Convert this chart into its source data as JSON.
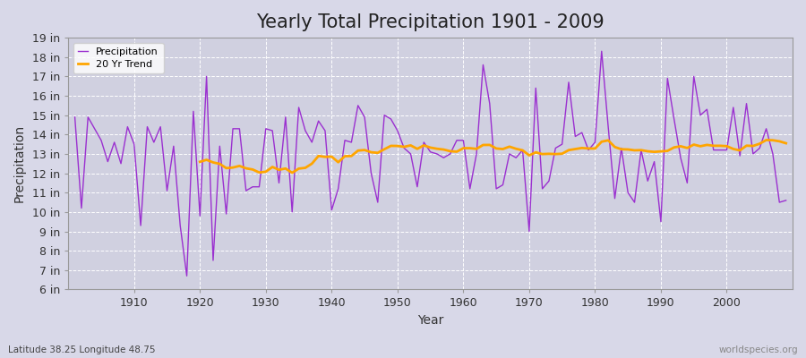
{
  "title": "Yearly Total Precipitation 1901 - 2009",
  "xlabel": "Year",
  "ylabel": "Precipitation",
  "subtitle": "Latitude 38.25 Longitude 48.75",
  "watermark": "worldspecies.org",
  "years": [
    1901,
    1902,
    1903,
    1904,
    1905,
    1906,
    1907,
    1908,
    1909,
    1910,
    1911,
    1912,
    1913,
    1914,
    1915,
    1916,
    1917,
    1918,
    1919,
    1920,
    1921,
    1922,
    1923,
    1924,
    1925,
    1926,
    1927,
    1928,
    1929,
    1930,
    1931,
    1932,
    1933,
    1934,
    1935,
    1936,
    1937,
    1938,
    1939,
    1940,
    1941,
    1942,
    1943,
    1944,
    1945,
    1946,
    1947,
    1948,
    1949,
    1950,
    1951,
    1952,
    1953,
    1954,
    1955,
    1956,
    1957,
    1958,
    1959,
    1960,
    1961,
    1962,
    1963,
    1964,
    1965,
    1966,
    1967,
    1968,
    1969,
    1970,
    1971,
    1972,
    1973,
    1974,
    1975,
    1976,
    1977,
    1978,
    1979,
    1980,
    1981,
    1982,
    1983,
    1984,
    1985,
    1986,
    1987,
    1988,
    1989,
    1990,
    1991,
    1992,
    1993,
    1994,
    1995,
    1996,
    1997,
    1998,
    1999,
    2000,
    2001,
    2002,
    2003,
    2004,
    2005,
    2006,
    2007,
    2008,
    2009
  ],
  "precipitation": [
    14.9,
    10.2,
    14.9,
    14.3,
    13.7,
    12.6,
    13.6,
    12.5,
    14.4,
    13.5,
    9.3,
    14.4,
    13.6,
    14.4,
    11.1,
    13.4,
    9.3,
    6.7,
    15.2,
    9.8,
    17.0,
    7.5,
    13.4,
    9.9,
    14.3,
    14.3,
    11.1,
    11.3,
    11.3,
    14.3,
    14.2,
    11.5,
    14.9,
    10.0,
    15.4,
    14.2,
    13.6,
    14.7,
    14.2,
    10.1,
    11.2,
    13.7,
    13.6,
    15.5,
    14.9,
    12.0,
    10.5,
    15.0,
    14.8,
    14.2,
    13.3,
    13.0,
    11.3,
    13.6,
    13.1,
    13.0,
    12.8,
    13.0,
    13.7,
    13.7,
    11.2,
    13.0,
    17.6,
    15.6,
    11.2,
    11.4,
    13.0,
    12.8,
    13.2,
    9.0,
    16.4,
    11.2,
    11.6,
    13.3,
    13.5,
    16.7,
    13.9,
    14.1,
    13.2,
    13.6,
    18.3,
    14.4,
    10.7,
    13.3,
    11.0,
    10.5,
    13.2,
    11.6,
    12.6,
    9.5,
    16.9,
    14.8,
    12.8,
    11.5,
    17.0,
    15.0,
    15.3,
    13.2,
    13.2,
    13.2,
    15.4,
    12.9,
    15.6,
    13.0,
    13.3,
    14.3,
    13.0,
    10.5,
    10.6
  ],
  "ylim": [
    6,
    19
  ],
  "ytick_values": [
    6,
    7,
    8,
    9,
    10,
    11,
    12,
    13,
    14,
    15,
    16,
    17,
    18,
    19
  ],
  "ytick_labels": [
    "6 in",
    "7 in",
    "8 in",
    "9 in",
    "10 in",
    "11 in",
    "12 in",
    "13 in",
    "14 in",
    "15 in",
    "16 in",
    "17 in",
    "18 in",
    "19 in"
  ],
  "xtick_values": [
    1910,
    1920,
    1930,
    1940,
    1950,
    1960,
    1970,
    1980,
    1990,
    2000
  ],
  "precip_color": "#9b30d0",
  "trend_color": "#FFA500",
  "fig_bg_color": "#d8d8e8",
  "plot_bg_color": "#d0d0e0",
  "grid_color": "#ffffff",
  "title_fontsize": 15,
  "label_fontsize": 10,
  "tick_fontsize": 9,
  "trend_window": 20,
  "legend_square_color": "#9b30d0",
  "legend_trend_color": "#FFA500"
}
